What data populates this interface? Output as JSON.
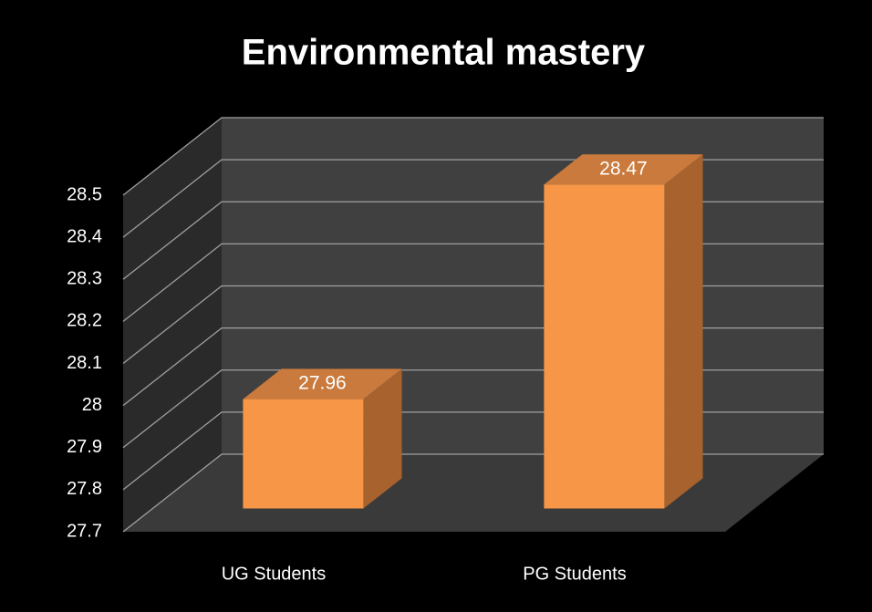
{
  "chart_data": {
    "type": "bar3d",
    "title": "Environmental mastery",
    "categories": [
      "UG Students",
      "PG Students"
    ],
    "values": [
      27.96,
      28.47
    ],
    "color": "#f79646",
    "ylim": [
      27.7,
      28.5
    ],
    "yticks": [
      27.7,
      27.8,
      27.9,
      28,
      28.1,
      28.2,
      28.3,
      28.4,
      28.5
    ],
    "grid": true
  }
}
